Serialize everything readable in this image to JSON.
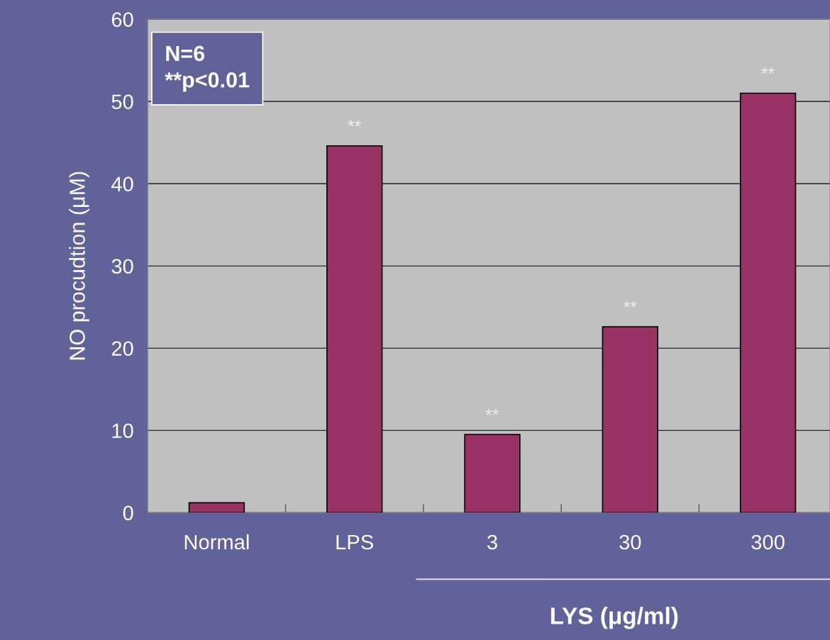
{
  "chart_data": {
    "type": "bar",
    "categories": [
      "Normal",
      "LPS",
      "3",
      "30",
      "300"
    ],
    "values": [
      1.2,
      44.6,
      9.5,
      22.6,
      51.0
    ],
    "color": "#993366",
    "ylabel": "NO procudtion (μM)",
    "xlabel": "LYS (μg/ml)",
    "ylim": [
      0,
      60
    ],
    "yticks": [
      0,
      10,
      20,
      30,
      40,
      50,
      60
    ],
    "grid": "y",
    "annotations": [
      "N=6\n**p<0.01",
      {
        "text": "**",
        "x": "LPS",
        "y": 44.6
      },
      {
        "text": "**",
        "x": "3",
        "y": 9.5
      },
      {
        "text": "**",
        "x": "30",
        "y": 22.6
      },
      {
        "text": "**",
        "x": "300",
        "y": 51.0
      }
    ]
  }
}
